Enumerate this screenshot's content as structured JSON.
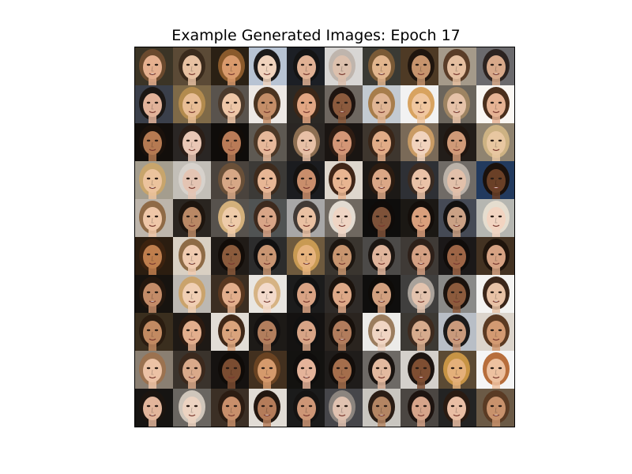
{
  "figure": {
    "title": "Example Generated Images: Epoch 17"
  },
  "grid": {
    "rows": 10,
    "cols": 10,
    "tiles": [
      {
        "bg": "#3b3426",
        "skin": "#e6b08f",
        "hair": "#6b4a2e"
      },
      {
        "bg": "#5b4a36",
        "skin": "#e7c1a2",
        "hair": "#3a2a1c"
      },
      {
        "bg": "#2a2014",
        "skin": "#d99a6c",
        "hair": "#8a5a2c"
      },
      {
        "bg": "#b7c3d3",
        "skin": "#f0d3bd",
        "hair": "#1c1a1a"
      },
      {
        "bg": "#1c1f25",
        "skin": "#e0b194",
        "hair": "#141414"
      },
      {
        "bg": "#d8d6d4",
        "skin": "#dcc0ad",
        "hair": "#bfb5ad"
      },
      {
        "bg": "#3a3a34",
        "skin": "#e2b58d",
        "hair": "#7a5a36"
      },
      {
        "bg": "#4e3a25",
        "skin": "#c7946d",
        "hair": "#1f150e"
      },
      {
        "bg": "#a59a8a",
        "skin": "#e5bfa0",
        "hair": "#5a3d28"
      },
      {
        "bg": "#6b6a6d",
        "skin": "#d8a98a",
        "hair": "#2c2320"
      },
      {
        "bg": "#3a3f4a",
        "skin": "#e2b39a",
        "hair": "#1b1714"
      },
      {
        "bg": "#7f6a48",
        "skin": "#e8bd95",
        "hair": "#b38b4e"
      },
      {
        "bg": "#59534d",
        "skin": "#eec7a8",
        "hair": "#4b3a2c"
      },
      {
        "bg": "#ede9e5",
        "skin": "#c48e68",
        "hair": "#4a3421"
      },
      {
        "bg": "#2c2925",
        "skin": "#e2a683",
        "hair": "#3c2718"
      },
      {
        "bg": "#6e6760",
        "skin": "#8b5a3d",
        "hair": "#1e1410"
      },
      {
        "bg": "#c3cad1",
        "skin": "#e0b594",
        "hair": "#a77d4b"
      },
      {
        "bg": "#f2f2f2",
        "skin": "#f0c7a0",
        "hair": "#d8a360"
      },
      {
        "bg": "#6b655c",
        "skin": "#e6c2a8",
        "hair": "#9e8462"
      },
      {
        "bg": "#faf7f3",
        "skin": "#e6b394",
        "hair": "#4a2f1d"
      },
      {
        "bg": "#120e0b",
        "skin": "#b57a52",
        "hair": "#1a110b"
      },
      {
        "bg": "#2a2624",
        "skin": "#e9c7b5",
        "hair": "#2b1e17"
      },
      {
        "bg": "#0f0c0a",
        "skin": "#b97b57",
        "hair": "#120c08"
      },
      {
        "bg": "#5e5952",
        "skin": "#e6b89a",
        "hair": "#4c3827"
      },
      {
        "bg": "#2a2623",
        "skin": "#e7c0a6",
        "hair": "#8d6f52"
      },
      {
        "bg": "#1a1512",
        "skin": "#d39676",
        "hair": "#2e1c12"
      },
      {
        "bg": "#3e362e",
        "skin": "#e1ac87",
        "hair": "#3a2618"
      },
      {
        "bg": "#7a6a58",
        "skin": "#f1d3bd",
        "hair": "#c99b64"
      },
      {
        "bg": "#221d19",
        "skin": "#d09a78",
        "hair": "#201610"
      },
      {
        "bg": "#8f8370",
        "skin": "#e8c7a1",
        "hair": "#cdb283"
      },
      {
        "bg": "#a49d8e",
        "skin": "#ecc39d",
        "hair": "#c8a56c"
      },
      {
        "bg": "#c3bfb8",
        "skin": "#e4c4b3",
        "hair": "#d7d2cc"
      },
      {
        "bg": "#4a433d",
        "skin": "#d6a786",
        "hair": "#6a5038"
      },
      {
        "bg": "#3c3a37",
        "skin": "#e7b695",
        "hair": "#3e2b1d"
      },
      {
        "bg": "#1b1c1f",
        "skin": "#c98e6c",
        "hair": "#141210"
      },
      {
        "bg": "#ded7cd",
        "skin": "#e8b591",
        "hair": "#3f2618"
      },
      {
        "bg": "#1c1916",
        "skin": "#dba786",
        "hair": "#2c1c11"
      },
      {
        "bg": "#2e3035",
        "skin": "#eac2a7",
        "hair": "#3a2b22"
      },
      {
        "bg": "#706b66",
        "skin": "#e2c0aa",
        "hair": "#bab1a8"
      },
      {
        "bg": "#223a5e",
        "skin": "#6a4027",
        "hair": "#1a110c"
      },
      {
        "bg": "#bdb5ab",
        "skin": "#efc7a8",
        "hair": "#8f6a46"
      },
      {
        "bg": "#2a2520",
        "skin": "#b98865",
        "hair": "#1e150e"
      },
      {
        "bg": "#57524d",
        "skin": "#eecba9",
        "hair": "#d3b07b"
      },
      {
        "bg": "#505353",
        "skin": "#d8a587",
        "hair": "#3d2a1e"
      },
      {
        "bg": "#a8a7a7",
        "skin": "#e9c0a2",
        "hair": "#413a36"
      },
      {
        "bg": "#6f6860",
        "skin": "#efd5c4",
        "hair": "#e2dbd1"
      },
      {
        "bg": "#0e0d0c",
        "skin": "#7e5239",
        "hair": "#0f0b09"
      },
      {
        "bg": "#1b1814",
        "skin": "#d99f7c",
        "hair": "#140e0a"
      },
      {
        "bg": "#454a55",
        "skin": "#caa185",
        "hair": "#121110"
      },
      {
        "bg": "#b5b6b1",
        "skin": "#f2d4c1",
        "hair": "#e5ddcf"
      },
      {
        "bg": "#2b1d10",
        "skin": "#bf7e4d",
        "hair": "#3c220f"
      },
      {
        "bg": "#d9d0c3",
        "skin": "#f0cbb0",
        "hair": "#8e6b46"
      },
      {
        "bg": "#201b17",
        "skin": "#8b5b3c",
        "hair": "#120c08"
      },
      {
        "bg": "#2c2c2c",
        "skin": "#c89572",
        "hair": "#111010"
      },
      {
        "bg": "#6e5a3e",
        "skin": "#e6b37d",
        "hair": "#c89a53"
      },
      {
        "bg": "#3a352f",
        "skin": "#c8956f",
        "hair": "#1d1610"
      },
      {
        "bg": "#4c4a48",
        "skin": "#e0b59c",
        "hair": "#1c1612"
      },
      {
        "bg": "#3f3a36",
        "skin": "#d4a083",
        "hair": "#2e2019"
      },
      {
        "bg": "#1b1818",
        "skin": "#9d6546",
        "hair": "#100c0a"
      },
      {
        "bg": "#433222",
        "skin": "#d6a283",
        "hair": "#1f140c"
      },
      {
        "bg": "#17130f",
        "skin": "#c48c68",
        "hair": "#24170e"
      },
      {
        "bg": "#bcb8b2",
        "skin": "#f0cfb4",
        "hair": "#caa36c"
      },
      {
        "bg": "#3b2e22",
        "skin": "#e2ae8c",
        "hair": "#5a3820"
      },
      {
        "bg": "#e9e6e1",
        "skin": "#f3dacb",
        "hair": "#d6b384"
      },
      {
        "bg": "#1c1c1c",
        "skin": "#d9a384",
        "hair": "#121212"
      },
      {
        "bg": "#2f2b28",
        "skin": "#dda887",
        "hair": "#1b120c"
      },
      {
        "bg": "#0f0e0d",
        "skin": "#d1a07f",
        "hair": "#0e0b08"
      },
      {
        "bg": "#403f3e",
        "skin": "#e3c3ae",
        "hair": "#a9a29b"
      },
      {
        "bg": "#8a8a88",
        "skin": "#8c5b3d",
        "hair": "#1a120d"
      },
      {
        "bg": "#f4f3f1",
        "skin": "#e8c2a6",
        "hair": "#3b261a"
      },
      {
        "bg": "#3a2e1e",
        "skin": "#c28a62",
        "hair": "#2a1c10"
      },
      {
        "bg": "#1e1915",
        "skin": "#e2ae8d",
        "hair": "#2b1a10"
      },
      {
        "bg": "#e2ddd6",
        "skin": "#d9a37c",
        "hair": "#3f2818"
      },
      {
        "bg": "#1d1a17",
        "skin": "#b27e5d",
        "hair": "#141110"
      },
      {
        "bg": "#141211",
        "skin": "#d7a486",
        "hair": "#101010"
      },
      {
        "bg": "#2a241f",
        "skin": "#b17c5c",
        "hair": "#17100b"
      },
      {
        "bg": "#ecebe8",
        "skin": "#f0d5c3",
        "hair": "#9b7d5e"
      },
      {
        "bg": "#3c3934",
        "skin": "#d6ab8d",
        "hair": "#3e2b1f"
      },
      {
        "bg": "#b8bec6",
        "skin": "#c99a7c",
        "hair": "#1b1a1a"
      },
      {
        "bg": "#dcd5cc",
        "skin": "#d39a72",
        "hair": "#5b3a22"
      },
      {
        "bg": "#8a7f72",
        "skin": "#ecc2a5",
        "hair": "#9b7250"
      },
      {
        "bg": "#3a332c",
        "skin": "#d9a98a",
        "hair": "#3b291d"
      },
      {
        "bg": "#151210",
        "skin": "#7a4c31",
        "hair": "#0f0b08"
      },
      {
        "bg": "#42301f",
        "skin": "#d59a6c",
        "hair": "#6a4322"
      },
      {
        "bg": "#131210",
        "skin": "#e4b39a",
        "hair": "#0f0d0c"
      },
      {
        "bg": "#1f1c1a",
        "skin": "#a46e4c",
        "hair": "#120d0a"
      },
      {
        "bg": "#6d6965",
        "skin": "#e3b99f",
        "hair": "#1a1411"
      },
      {
        "bg": "#d4d0cb",
        "skin": "#7e4e32",
        "hair": "#1c1410"
      },
      {
        "bg": "#5b4a34",
        "skin": "#e4b07a",
        "hair": "#c79445"
      },
      {
        "bg": "#f5f5f5",
        "skin": "#edc1a0",
        "hair": "#b76e3c"
      },
      {
        "bg": "#161412",
        "skin": "#e2b59b",
        "hair": "#1b140f"
      },
      {
        "bg": "#6a6661",
        "skin": "#ecd3c1",
        "hair": "#cfc6bb"
      },
      {
        "bg": "#3b2f25",
        "skin": "#c88f6b",
        "hair": "#2b1c12"
      },
      {
        "bg": "#e1dcd5",
        "skin": "#b47c5a",
        "hair": "#221710"
      },
      {
        "bg": "#1b1b1b",
        "skin": "#cd9676",
        "hair": "#151312"
      },
      {
        "bg": "#46464a",
        "skin": "#e0c2b0",
        "hair": "#8c857f"
      },
      {
        "bg": "#c9c6c0",
        "skin": "#b38563",
        "hair": "#2a1d15"
      },
      {
        "bg": "#4b4642",
        "skin": "#d6a48a",
        "hair": "#1e1410"
      },
      {
        "bg": "#232323",
        "skin": "#e9bea4",
        "hair": "#2a1b12"
      },
      {
        "bg": "#6b5a46",
        "skin": "#c8926c",
        "hair": "#5a3b24"
      }
    ]
  }
}
